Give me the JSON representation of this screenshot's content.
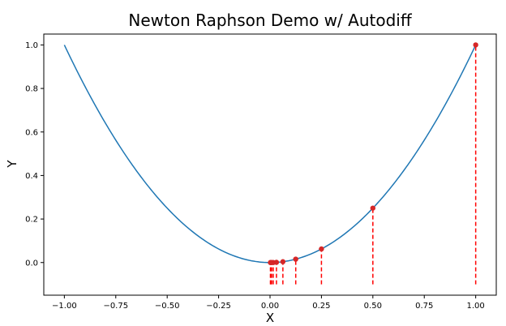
{
  "chart_data": {
    "type": "line",
    "title": "Newton Raphson Demo w/ Autodiff",
    "xlabel": "X",
    "ylabel": "Y",
    "xlim": [
      -1.1,
      1.1
    ],
    "ylim": [
      -0.15,
      1.05
    ],
    "xticks": [
      -1.0,
      -0.75,
      -0.5,
      -0.25,
      0.0,
      0.25,
      0.5,
      0.75,
      1.0
    ],
    "xtick_labels": [
      "−1.00",
      "−0.75",
      "−0.50",
      "−0.25",
      "0.00",
      "0.25",
      "0.50",
      "0.75",
      "1.00"
    ],
    "yticks": [
      0.0,
      0.2,
      0.4,
      0.6,
      0.8,
      1.0
    ],
    "ytick_labels": [
      "0.0",
      "0.2",
      "0.4",
      "0.6",
      "0.8",
      "1.0"
    ],
    "series": [
      {
        "kind": "line",
        "color": "#1f77b4",
        "function": "y = x^2",
        "x_range": [
          -1.0,
          1.0
        ]
      },
      {
        "kind": "scatter",
        "color": "#d62728",
        "x": [
          1.0,
          0.5,
          0.25,
          0.125,
          0.0625,
          0.03125,
          0.015625,
          0.0078125,
          0.00390625,
          0.001953125
        ],
        "y": [
          1.0,
          0.25,
          0.0625,
          0.015625,
          0.00390625,
          0.0009765625,
          0.000244140625,
          6.103515625e-05,
          1.52587890625e-05,
          3.814697265625e-06
        ]
      },
      {
        "kind": "vlines",
        "color": "#ff0000",
        "style": "dashed",
        "x": [
          1.0,
          0.5,
          0.25,
          0.125,
          0.0625,
          0.03125,
          0.015625,
          0.0078125,
          0.00390625,
          0.001953125
        ],
        "y_bottom": -0.1,
        "y_top": [
          1.0,
          0.25,
          0.0625,
          0.015625,
          0.00390625,
          0.0009765625,
          0.000244140625,
          6.103515625e-05,
          1.52587890625e-05,
          3.814697265625e-06
        ]
      }
    ],
    "grid": false,
    "legend": "none"
  }
}
